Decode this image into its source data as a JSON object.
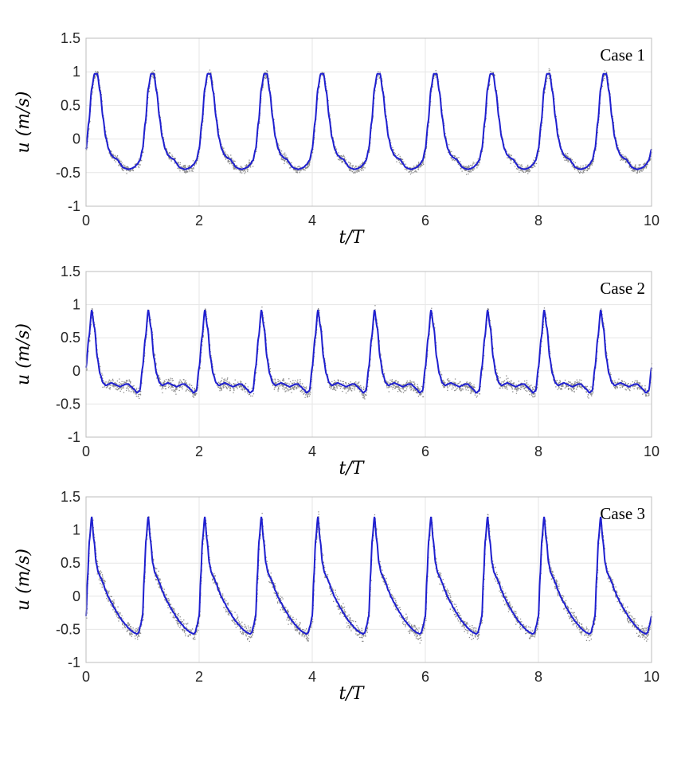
{
  "chart_data": [
    {
      "type": "line",
      "annotation": "Case 1",
      "xlabel": "t/T",
      "ylabel": "u (m/s)",
      "xlim": [
        0,
        10
      ],
      "ylim": [
        -1,
        1.5
      ],
      "xticks": [
        "0",
        "2",
        "4",
        "6",
        "8",
        "10"
      ],
      "yticks": [
        "1.5",
        "1",
        "0.5",
        "0",
        "-0.5",
        "-1"
      ],
      "grid": true,
      "periods": 10,
      "scatter_color": "#8c8c8c",
      "line_color": "#1f1fd0",
      "scatter_noise": 0.06,
      "cycle_profile": {
        "phase": [
          0.0,
          0.05,
          0.1,
          0.15,
          0.2,
          0.25,
          0.3,
          0.35,
          0.4,
          0.45,
          0.5,
          0.55,
          0.6,
          0.65,
          0.7,
          0.75,
          0.8,
          0.85,
          0.9,
          0.95,
          1.0
        ],
        "u": [
          -0.15,
          0.25,
          0.75,
          0.97,
          0.97,
          0.7,
          0.32,
          0.02,
          -0.15,
          -0.24,
          -0.28,
          -0.3,
          -0.36,
          -0.42,
          -0.44,
          -0.45,
          -0.44,
          -0.42,
          -0.38,
          -0.32,
          -0.15
        ]
      }
    },
    {
      "type": "line",
      "annotation": "Case 2",
      "xlabel": "t/T",
      "ylabel": "u (m/s)",
      "xlim": [
        0,
        10
      ],
      "ylim": [
        -1,
        1.5
      ],
      "xticks": [
        "0",
        "2",
        "4",
        "6",
        "8",
        "10"
      ],
      "yticks": [
        "1.5",
        "1",
        "0.5",
        "0",
        "-0.5",
        "-1"
      ],
      "grid": true,
      "periods": 10,
      "scatter_color": "#8c8c8c",
      "line_color": "#1f1fd0",
      "scatter_noise": 0.08,
      "cycle_profile": {
        "phase": [
          0.0,
          0.05,
          0.1,
          0.15,
          0.2,
          0.25,
          0.3,
          0.35,
          0.4,
          0.45,
          0.5,
          0.55,
          0.6,
          0.65,
          0.7,
          0.75,
          0.8,
          0.85,
          0.9,
          0.95,
          1.0
        ],
        "u": [
          0.05,
          0.5,
          0.92,
          0.65,
          0.2,
          -0.05,
          -0.18,
          -0.22,
          -0.2,
          -0.18,
          -0.2,
          -0.22,
          -0.24,
          -0.22,
          -0.2,
          -0.2,
          -0.24,
          -0.28,
          -0.33,
          -0.3,
          0.05
        ]
      }
    },
    {
      "type": "line",
      "annotation": "Case 3",
      "xlabel": "t/T",
      "ylabel": "u (m/s)",
      "xlim": [
        0,
        10
      ],
      "ylim": [
        -1,
        1.5
      ],
      "xticks": [
        "0",
        "2",
        "4",
        "6",
        "8",
        "10"
      ],
      "yticks": [
        "1.5",
        "1",
        "0.5",
        "0",
        "-0.5",
        "-1"
      ],
      "grid": true,
      "periods": 10,
      "scatter_color": "#8c8c8c",
      "line_color": "#1f1fd0",
      "scatter_noise": 0.1,
      "cycle_profile": {
        "phase": [
          0.0,
          0.03,
          0.06,
          0.1,
          0.14,
          0.18,
          0.22,
          0.26,
          0.3,
          0.35,
          0.4,
          0.45,
          0.5,
          0.55,
          0.6,
          0.65,
          0.7,
          0.75,
          0.8,
          0.85,
          0.9,
          0.93,
          0.96,
          1.0
        ],
        "u": [
          -0.3,
          0.3,
          0.85,
          1.2,
          0.85,
          0.5,
          0.35,
          0.28,
          0.2,
          0.08,
          -0.02,
          -0.1,
          -0.18,
          -0.25,
          -0.32,
          -0.38,
          -0.43,
          -0.48,
          -0.52,
          -0.55,
          -0.57,
          -0.55,
          -0.45,
          -0.3
        ]
      }
    }
  ]
}
